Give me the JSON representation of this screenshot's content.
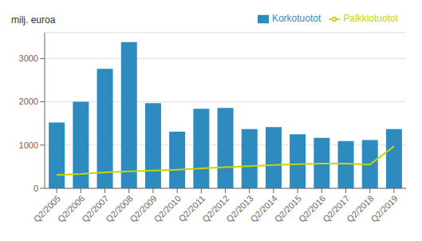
{
  "chart_data": {
    "type": "bar",
    "ylabel": "milj. euroa",
    "categories": [
      "Q2/2005",
      "Q2/2006",
      "Q2/2007",
      "Q2/2008",
      "Q2/2009",
      "Q2/2010",
      "Q2/2011",
      "Q2/2012",
      "Q2/2013",
      "Q2/2014",
      "Q2/2015",
      "Q2/2016",
      "Q2/2017",
      "Q2/2018",
      "Q2/2019"
    ],
    "series": [
      {
        "name": "Korkotuotot",
        "type": "bar",
        "color": "#2e8bc0",
        "values": [
          1520,
          2000,
          2760,
          3380,
          1970,
          1310,
          1840,
          1860,
          1370,
          1415,
          1250,
          1165,
          1095,
          1115,
          1370
        ]
      },
      {
        "name": "Palkkiotuotot",
        "type": "line",
        "color": "#c8d400",
        "values": [
          310,
          330,
          370,
          390,
          410,
          430,
          460,
          490,
          510,
          540,
          560,
          570,
          570,
          550,
          970
        ]
      }
    ],
    "ylim": [
      0,
      3600
    ],
    "yticks": [
      0,
      1000,
      2000,
      3000
    ],
    "grid": true,
    "legend": "upper right"
  }
}
